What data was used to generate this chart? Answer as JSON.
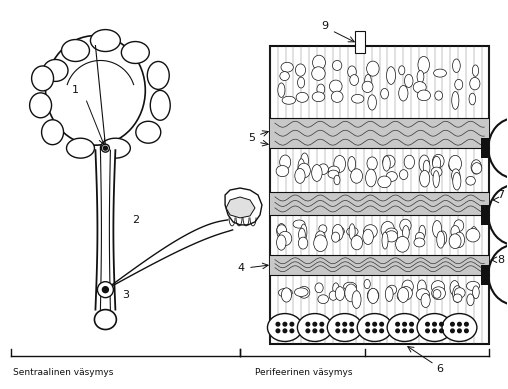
{
  "bg_color": "#ffffff",
  "label_sentraalinen": "Sentraalinen väsymys",
  "label_perifeerinen": "Perifeerinen väsymys",
  "figsize": [
    5.08,
    3.89
  ],
  "dpi": 100,
  "dark": "#111111",
  "gray_band": "#c0c0c0",
  "light_gray": "#d8d8d8"
}
